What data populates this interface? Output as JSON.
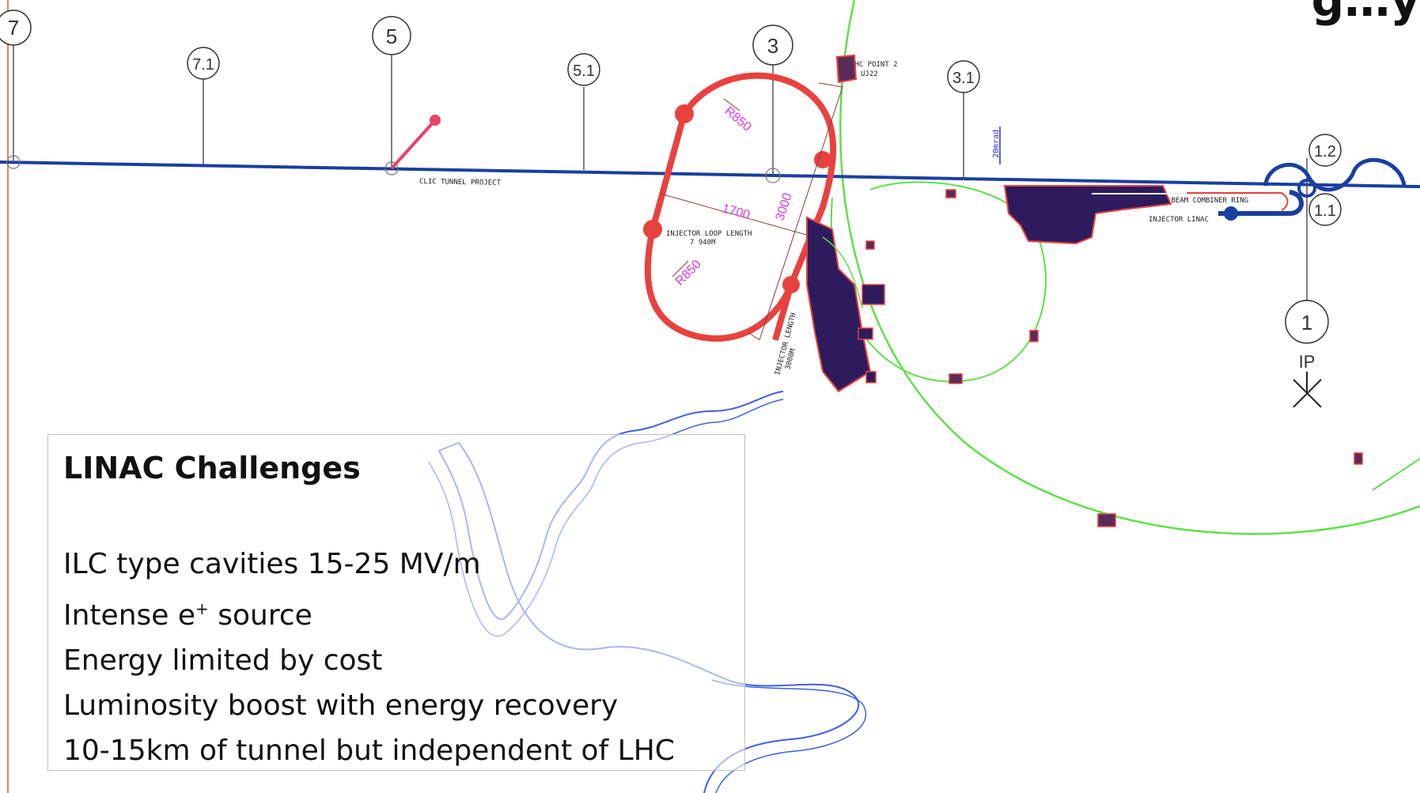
{
  "corner_title": "g…y",
  "markers": [
    "7",
    "7.1",
    "5",
    "5.1",
    "3",
    "3.1",
    "1.2",
    "1.1",
    "1"
  ],
  "labels": {
    "clic_tunnel": "CLIC TUNNEL PROJECT",
    "lhc_point": "LHC POINT 2",
    "lhc_point_sub": "UJ22",
    "injector_loop": "INJECTOR LOOP LENGTH",
    "injector_loop_sub": "7 940M",
    "injector_length": "INJECTOR LENGTH",
    "injector_length_sub": "3000M",
    "drive_beam": "DRIVE BEAM COMBINER RING",
    "injector_linac": "INJECTOR LINAC",
    "angle": "20mrad",
    "dim_1700": "1700",
    "dim_3000": "3000",
    "r850_top": "R850",
    "r850_bottom": "R850",
    "ip": "IP"
  },
  "textbox": {
    "heading": "LINAC Challenges",
    "items": [
      "ILC type cavities 15-25 MV/m",
      "Intense e",
      "Energy limited by cost",
      "Luminosity boost with energy recovery",
      "10-15km of tunnel but independent of LHC"
    ],
    "superscript": "+",
    "item2_suffix": " source"
  },
  "colors": {
    "tunnel_line": "#1a3fa0",
    "red_loop": "#e8423f",
    "green_ring": "#5fe04a",
    "river": "#3f5fe8",
    "magenta": "#d83adf",
    "site": "#2d1b5e"
  }
}
